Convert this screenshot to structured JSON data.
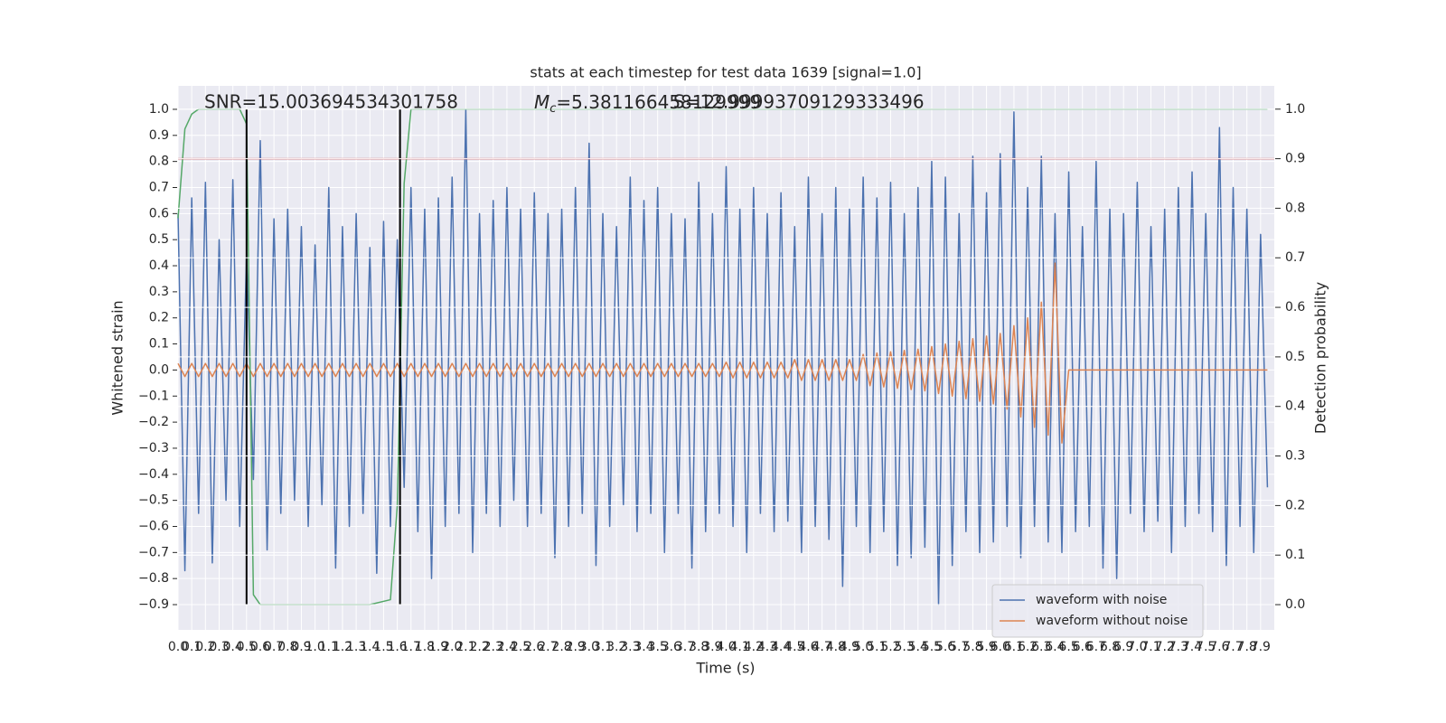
{
  "chart_data": {
    "type": "line",
    "title": "stats at each timestep for test data 1639 [signal=1.0]",
    "xlabel": "Time (s)",
    "ylabel": "Whitened strain",
    "y2label": "Detection probability",
    "annotations": [
      {
        "text": "SNR=15.003694534301758"
      },
      {
        "symbol": "M",
        "subscript": "c",
        "text": "=5.381166458129999"
      },
      {
        "text": "S=12.99993709129333496"
      }
    ],
    "xlim": [
      0,
      8.0
    ],
    "ylim": [
      -0.997,
      1.09
    ],
    "y2lim": [
      -0.051,
      1.047
    ],
    "grid": true,
    "legend": "lower right",
    "xticks": [
      {
        "value": 0,
        "label": "0.0"
      },
      0.1,
      0.2,
      0.3,
      0.4,
      0.5,
      0.6,
      0.7,
      0.8,
      0.9,
      {
        "value": 1,
        "label": "1.0"
      },
      1.1,
      1.2,
      1.3,
      1.4,
      1.5,
      1.6,
      1.7,
      1.8,
      1.9,
      {
        "value": 2,
        "label": "2.0"
      },
      2.1,
      2.2,
      2.3,
      2.4,
      2.5,
      2.6,
      2.7,
      2.8,
      2.9,
      {
        "value": 3,
        "label": "3.0"
      },
      3.1,
      3.2,
      3.3,
      3.4,
      3.5,
      3.6,
      3.7,
      3.8,
      3.9,
      {
        "value": 4,
        "label": "4.0"
      },
      4.1,
      4.2,
      4.3,
      4.4,
      4.5,
      4.6,
      4.7,
      4.8,
      4.9,
      {
        "value": 5,
        "label": "5.0"
      },
      5.1,
      5.2,
      5.3,
      5.4,
      5.5,
      5.6,
      5.7,
      5.8,
      5.9,
      {
        "value": 6,
        "label": "6.0"
      },
      6.1,
      6.2,
      6.3,
      6.4,
      6.5,
      6.6,
      6.7,
      6.8,
      6.9,
      {
        "value": 7,
        "label": "7.0"
      },
      7.1,
      7.2,
      7.3,
      7.4,
      7.5,
      7.6,
      7.7,
      7.8,
      7.9
    ],
    "yticks": [
      {
        "value": 1,
        "label": "1.0"
      },
      0.9,
      0.8,
      0.7,
      0.6,
      0.5,
      0.4,
      0.3,
      0.2,
      0.1,
      {
        "value": 0,
        "label": "0.0"
      },
      {
        "value": -0.1,
        "label": "−0.1"
      },
      {
        "value": -0.2,
        "label": "−0.2"
      },
      {
        "value": -0.3,
        "label": "−0.3"
      },
      {
        "value": -0.4,
        "label": "−0.4"
      },
      {
        "value": -0.5,
        "label": "−0.5"
      },
      {
        "value": -0.6,
        "label": "−0.6"
      },
      {
        "value": -0.7,
        "label": "−0.7"
      },
      {
        "value": -0.8,
        "label": "−0.8"
      },
      {
        "value": -0.9,
        "label": "−0.9"
      }
    ],
    "y2ticks": [
      {
        "value": 0,
        "label": "0.0"
      },
      0.1,
      0.2,
      0.3,
      0.4,
      0.5,
      0.6,
      0.7,
      0.8,
      0.9,
      {
        "value": 1,
        "label": "1.0"
      }
    ],
    "x": [
      0,
      0.05,
      0.1,
      0.15,
      0.2,
      0.25,
      0.3,
      0.35,
      0.4,
      0.45,
      0.5,
      0.55,
      0.6,
      0.65,
      0.7,
      0.75,
      0.8,
      0.85,
      0.9,
      0.95,
      1,
      1.05,
      1.1,
      1.15,
      1.2,
      1.25,
      1.3,
      1.35,
      1.4,
      1.45,
      1.5,
      1.55,
      1.6,
      1.65,
      1.7,
      1.75,
      1.8,
      1.85,
      1.9,
      1.95,
      2,
      2.05,
      2.1,
      2.15,
      2.2,
      2.25,
      2.3,
      2.35,
      2.4,
      2.45,
      2.5,
      2.55,
      2.6,
      2.65,
      2.7,
      2.75,
      2.8,
      2.85,
      2.9,
      2.95,
      3,
      3.05,
      3.1,
      3.15,
      3.2,
      3.25,
      3.3,
      3.35,
      3.4,
      3.45,
      3.5,
      3.55,
      3.6,
      3.65,
      3.7,
      3.75,
      3.8,
      3.85,
      3.9,
      3.95,
      4,
      4.05,
      4.1,
      4.15,
      4.2,
      4.25,
      4.3,
      4.35,
      4.4,
      4.45,
      4.5,
      4.55,
      4.6,
      4.65,
      4.7,
      4.75,
      4.8,
      4.85,
      4.9,
      4.95,
      5,
      5.05,
      5.1,
      5.15,
      5.2,
      5.25,
      5.3,
      5.35,
      5.4,
      5.45,
      5.5,
      5.55,
      5.6,
      5.65,
      5.7,
      5.75,
      5.8,
      5.85,
      5.9,
      5.95,
      6,
      6.05,
      6.1,
      6.15,
      6.2,
      6.25,
      6.3,
      6.35,
      6.4,
      6.45,
      6.5,
      6.55,
      6.6,
      6.65,
      6.7,
      6.75,
      6.8,
      6.85,
      6.9,
      6.95,
      7,
      7.05,
      7.1,
      7.15,
      7.2,
      7.25,
      7.3,
      7.35,
      7.4,
      7.45,
      7.5,
      7.55,
      7.6,
      7.65,
      7.7,
      7.75,
      7.8,
      7.85,
      7.9,
      7.95
    ],
    "series": [
      {
        "name": "waveform with noise",
        "color": "#4c72b0",
        "values": [
          0.6,
          -0.77,
          0.66,
          -0.55,
          0.72,
          -0.74,
          0.5,
          -0.5,
          0.73,
          -0.6,
          0.45,
          -0.42,
          0.88,
          -0.69,
          0.58,
          -0.55,
          0.62,
          -0.5,
          0.55,
          -0.6,
          0.48,
          -0.52,
          0.7,
          -0.76,
          0.55,
          -0.6,
          0.6,
          -0.55,
          0.47,
          -0.78,
          0.57,
          -0.6,
          0.5,
          -0.45,
          0.7,
          -0.62,
          0.62,
          -0.8,
          0.66,
          -0.6,
          0.74,
          -0.55,
          1.0,
          -0.7,
          0.6,
          -0.55,
          0.65,
          -0.6,
          0.7,
          -0.5,
          0.62,
          -0.6,
          0.68,
          -0.55,
          0.6,
          -0.72,
          0.62,
          -0.6,
          0.7,
          -0.55,
          0.87,
          -0.75,
          0.6,
          -0.6,
          0.55,
          -0.52,
          0.74,
          -0.62,
          0.65,
          -0.55,
          0.7,
          -0.7,
          0.6,
          -0.55,
          0.58,
          -0.76,
          0.72,
          -0.62,
          0.6,
          -0.55,
          0.78,
          -0.6,
          0.62,
          -0.7,
          0.7,
          -0.55,
          0.6,
          -0.62,
          0.68,
          -0.58,
          0.55,
          -0.7,
          0.74,
          -0.6,
          0.6,
          -0.65,
          0.7,
          -0.83,
          0.62,
          -0.6,
          0.74,
          -0.7,
          0.66,
          -0.62,
          0.72,
          -0.75,
          0.6,
          -0.72,
          0.7,
          -0.68,
          0.8,
          -0.9,
          0.74,
          -0.75,
          0.6,
          -0.62,
          0.82,
          -0.7,
          0.68,
          -0.66,
          0.83,
          -0.6,
          0.99,
          -0.72,
          0.7,
          -0.6,
          0.82,
          -0.66,
          0.6,
          -0.7,
          0.76,
          -0.62,
          0.55,
          -0.6,
          0.8,
          -0.76,
          0.62,
          -0.8,
          0.6,
          -0.55,
          0.72,
          -0.62,
          0.55,
          -0.58,
          0.62,
          -0.7,
          0.7,
          -0.6,
          0.76,
          -0.55,
          0.6,
          -0.62,
          0.93,
          -0.75,
          0.7,
          -0.6,
          0.62,
          -0.7,
          0.52,
          -0.45
        ]
      },
      {
        "name": "waveform without noise",
        "color": "#dd8452",
        "values": [
          0.025,
          -0.025,
          0.025,
          -0.025,
          0.025,
          -0.025,
          0.025,
          -0.025,
          0.025,
          -0.025,
          0.025,
          -0.025,
          0.025,
          -0.025,
          0.025,
          -0.025,
          0.025,
          -0.025,
          0.025,
          -0.025,
          0.025,
          -0.025,
          0.025,
          -0.025,
          0.025,
          -0.025,
          0.025,
          -0.025,
          0.025,
          -0.025,
          0.025,
          -0.025,
          0.025,
          -0.025,
          0.025,
          -0.025,
          0.025,
          -0.025,
          0.025,
          -0.025,
          0.025,
          -0.025,
          0.025,
          -0.025,
          0.025,
          -0.025,
          0.025,
          -0.025,
          0.025,
          -0.025,
          0.025,
          -0.025,
          0.025,
          -0.025,
          0.025,
          -0.025,
          0.025,
          -0.025,
          0.025,
          -0.025,
          0.025,
          -0.025,
          0.025,
          -0.025,
          0.025,
          -0.025,
          0.025,
          -0.025,
          0.025,
          -0.025,
          0.025,
          -0.025,
          0.025,
          -0.025,
          0.025,
          -0.025,
          0.025,
          -0.025,
          0.025,
          -0.025,
          0.03,
          -0.03,
          0.03,
          -0.03,
          0.03,
          -0.03,
          0.03,
          -0.03,
          0.03,
          -0.03,
          0.04,
          -0.04,
          0.04,
          -0.04,
          0.04,
          -0.04,
          0.04,
          -0.04,
          0.04,
          -0.04,
          0.06,
          -0.06,
          0.065,
          -0.065,
          0.07,
          -0.07,
          0.075,
          -0.075,
          0.08,
          -0.08,
          0.09,
          -0.09,
          0.1,
          -0.1,
          0.11,
          -0.11,
          0.12,
          -0.12,
          0.13,
          -0.13,
          0.14,
          -0.15,
          0.17,
          -0.18,
          0.2,
          -0.22,
          0.26,
          -0.25,
          0.41,
          -0.28,
          0,
          0,
          0,
          0,
          0,
          0,
          0,
          0,
          0,
          0,
          0,
          0,
          0,
          0,
          0,
          0,
          0,
          0,
          0,
          0,
          0,
          0,
          0,
          0,
          0,
          0,
          0,
          0,
          0,
          0
        ]
      },
      {
        "color": "#55a868",
        "axis": "y2",
        "x": [
          0,
          0.05,
          0.1,
          0.15,
          0.45,
          0.5,
          0.55,
          0.6,
          1.0,
          1.4,
          1.55,
          1.6,
          1.65,
          1.7,
          7.95
        ],
        "values": [
          0.78,
          0.96,
          0.99,
          1.0,
          1.0,
          0.97,
          0.02,
          0.0,
          0.0,
          0.0,
          0.01,
          0.2,
          0.85,
          1.0,
          1.0
        ]
      }
    ],
    "hlines": [
      {
        "value": 0.9,
        "axis": "y2",
        "color": "#c44e52"
      }
    ],
    "vlines": {
      "values": [
        0.5,
        1.62
      ],
      "color": "#000000",
      "axis": "y2",
      "span": [
        0,
        1
      ]
    }
  }
}
